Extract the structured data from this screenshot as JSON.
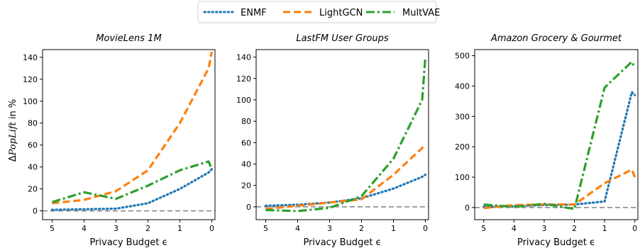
{
  "figure": {
    "ylabel_prefix": "Δ",
    "ylabel_math": "PopLift",
    "ylabel_suffix": " in %",
    "colors": {
      "ENMF": "#1f77b4",
      "LightGCN": "#ff7f0e",
      "MultVAE": "#2ca02c",
      "baseline": "#808080"
    }
  },
  "legend": {
    "placement": "top-center",
    "entries": [
      {
        "name": "ENMF",
        "style": "dotted"
      },
      {
        "name": "LightGCN",
        "style": "dashed"
      },
      {
        "name": "MultVAE",
        "style": "dashdot"
      }
    ]
  },
  "chart_data": [
    {
      "type": "line",
      "title": "MovieLens 1M",
      "xlabel": "Privacy Budget ϵ",
      "ylabel": "ΔPopLift in %",
      "xlim": [
        5.3,
        -0.1
      ],
      "ylim": [
        -8,
        147
      ],
      "xticks": [
        5,
        4,
        3,
        2,
        1,
        0
      ],
      "yticks": [
        0,
        20,
        40,
        60,
        80,
        100,
        120,
        140
      ],
      "baseline": 0,
      "grid": false,
      "x": [
        5,
        4,
        3,
        2,
        1,
        0.1,
        0
      ],
      "series": [
        {
          "name": "ENMF",
          "values": [
            1,
            1.5,
            2,
            7,
            20,
            35,
            38
          ]
        },
        {
          "name": "LightGCN",
          "values": [
            7,
            10,
            18,
            37,
            80,
            130,
            145
          ]
        },
        {
          "name": "MultVAE",
          "values": [
            8,
            17,
            11,
            23,
            37,
            45,
            38
          ]
        }
      ]
    },
    {
      "type": "line",
      "title": "LastFM User Groups",
      "xlabel": "Privacy Budget ϵ",
      "ylabel": "",
      "xlim": [
        5.3,
        -0.1
      ],
      "ylim": [
        -12,
        147
      ],
      "xticks": [
        5,
        4,
        3,
        2,
        1,
        0
      ],
      "yticks": [
        0,
        20,
        40,
        60,
        80,
        100,
        120,
        140
      ],
      "baseline": 0,
      "grid": false,
      "x": [
        5,
        4,
        3,
        2,
        1,
        0.1,
        0
      ],
      "series": [
        {
          "name": "ENMF",
          "values": [
            1,
            2,
            4,
            8,
            17,
            28,
            30
          ]
        },
        {
          "name": "LightGCN",
          "values": [
            -2,
            1,
            4,
            7,
            30,
            55,
            58
          ]
        },
        {
          "name": "MultVAE",
          "values": [
            -3,
            -4,
            -1,
            10,
            45,
            100,
            140
          ]
        }
      ]
    },
    {
      "type": "line",
      "title": "Amazon Grocery & Gourmet",
      "xlabel": "Privacy Budget ϵ",
      "ylabel": "",
      "xlim": [
        5.3,
        -0.1
      ],
      "ylim": [
        -40,
        520
      ],
      "xticks": [
        5,
        4,
        3,
        2,
        1,
        0
      ],
      "yticks": [
        0,
        100,
        200,
        300,
        400,
        500
      ],
      "baseline": 0,
      "grid": false,
      "x": [
        5,
        4,
        3,
        2,
        1,
        0.1,
        0
      ],
      "series": [
        {
          "name": "ENMF",
          "values": [
            3,
            5,
            8,
            10,
            20,
            380,
            370
          ]
        },
        {
          "name": "LightGCN",
          "values": [
            -2,
            8,
            10,
            10,
            80,
            125,
            100
          ]
        },
        {
          "name": "MultVAE",
          "values": [
            10,
            2,
            12,
            -5,
            395,
            480,
            460
          ]
        }
      ]
    }
  ]
}
